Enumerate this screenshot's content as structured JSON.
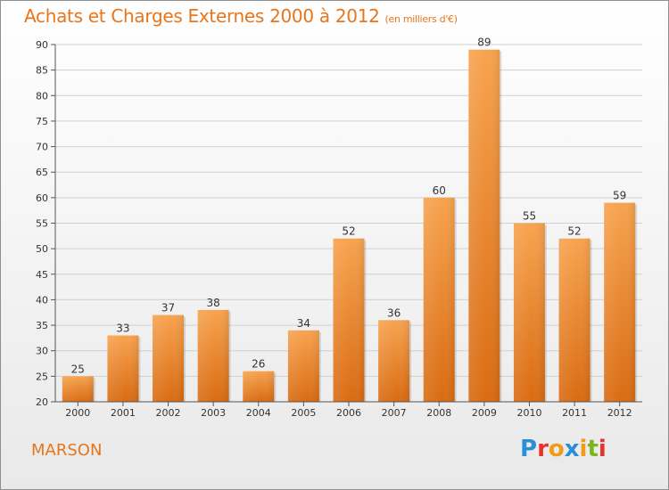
{
  "header": {
    "title": "Achats et Charges Externes 2000 à 2012",
    "unit": "(en milliers d'€)"
  },
  "footer": {
    "city": "MARSON",
    "logo": "Proxiti"
  },
  "colors": {
    "accent": "#e8751a",
    "bar_top": "#f7a34f",
    "bar_bottom": "#d96b12"
  },
  "chart_data": {
    "type": "bar",
    "title": "Achats et Charges Externes 2000 à 2012",
    "xlabel": "",
    "ylabel": "",
    "categories": [
      "2000",
      "2001",
      "2002",
      "2003",
      "2004",
      "2005",
      "2006",
      "2007",
      "2008",
      "2009",
      "2010",
      "2011",
      "2012"
    ],
    "values": [
      25,
      33,
      37,
      38,
      26,
      34,
      52,
      36,
      60,
      89,
      55,
      52,
      59
    ],
    "ylim": [
      20,
      90
    ],
    "yticks": [
      20,
      25,
      30,
      35,
      40,
      45,
      50,
      55,
      60,
      65,
      70,
      75,
      80,
      85,
      90
    ],
    "grid": true,
    "data_labels": true
  }
}
